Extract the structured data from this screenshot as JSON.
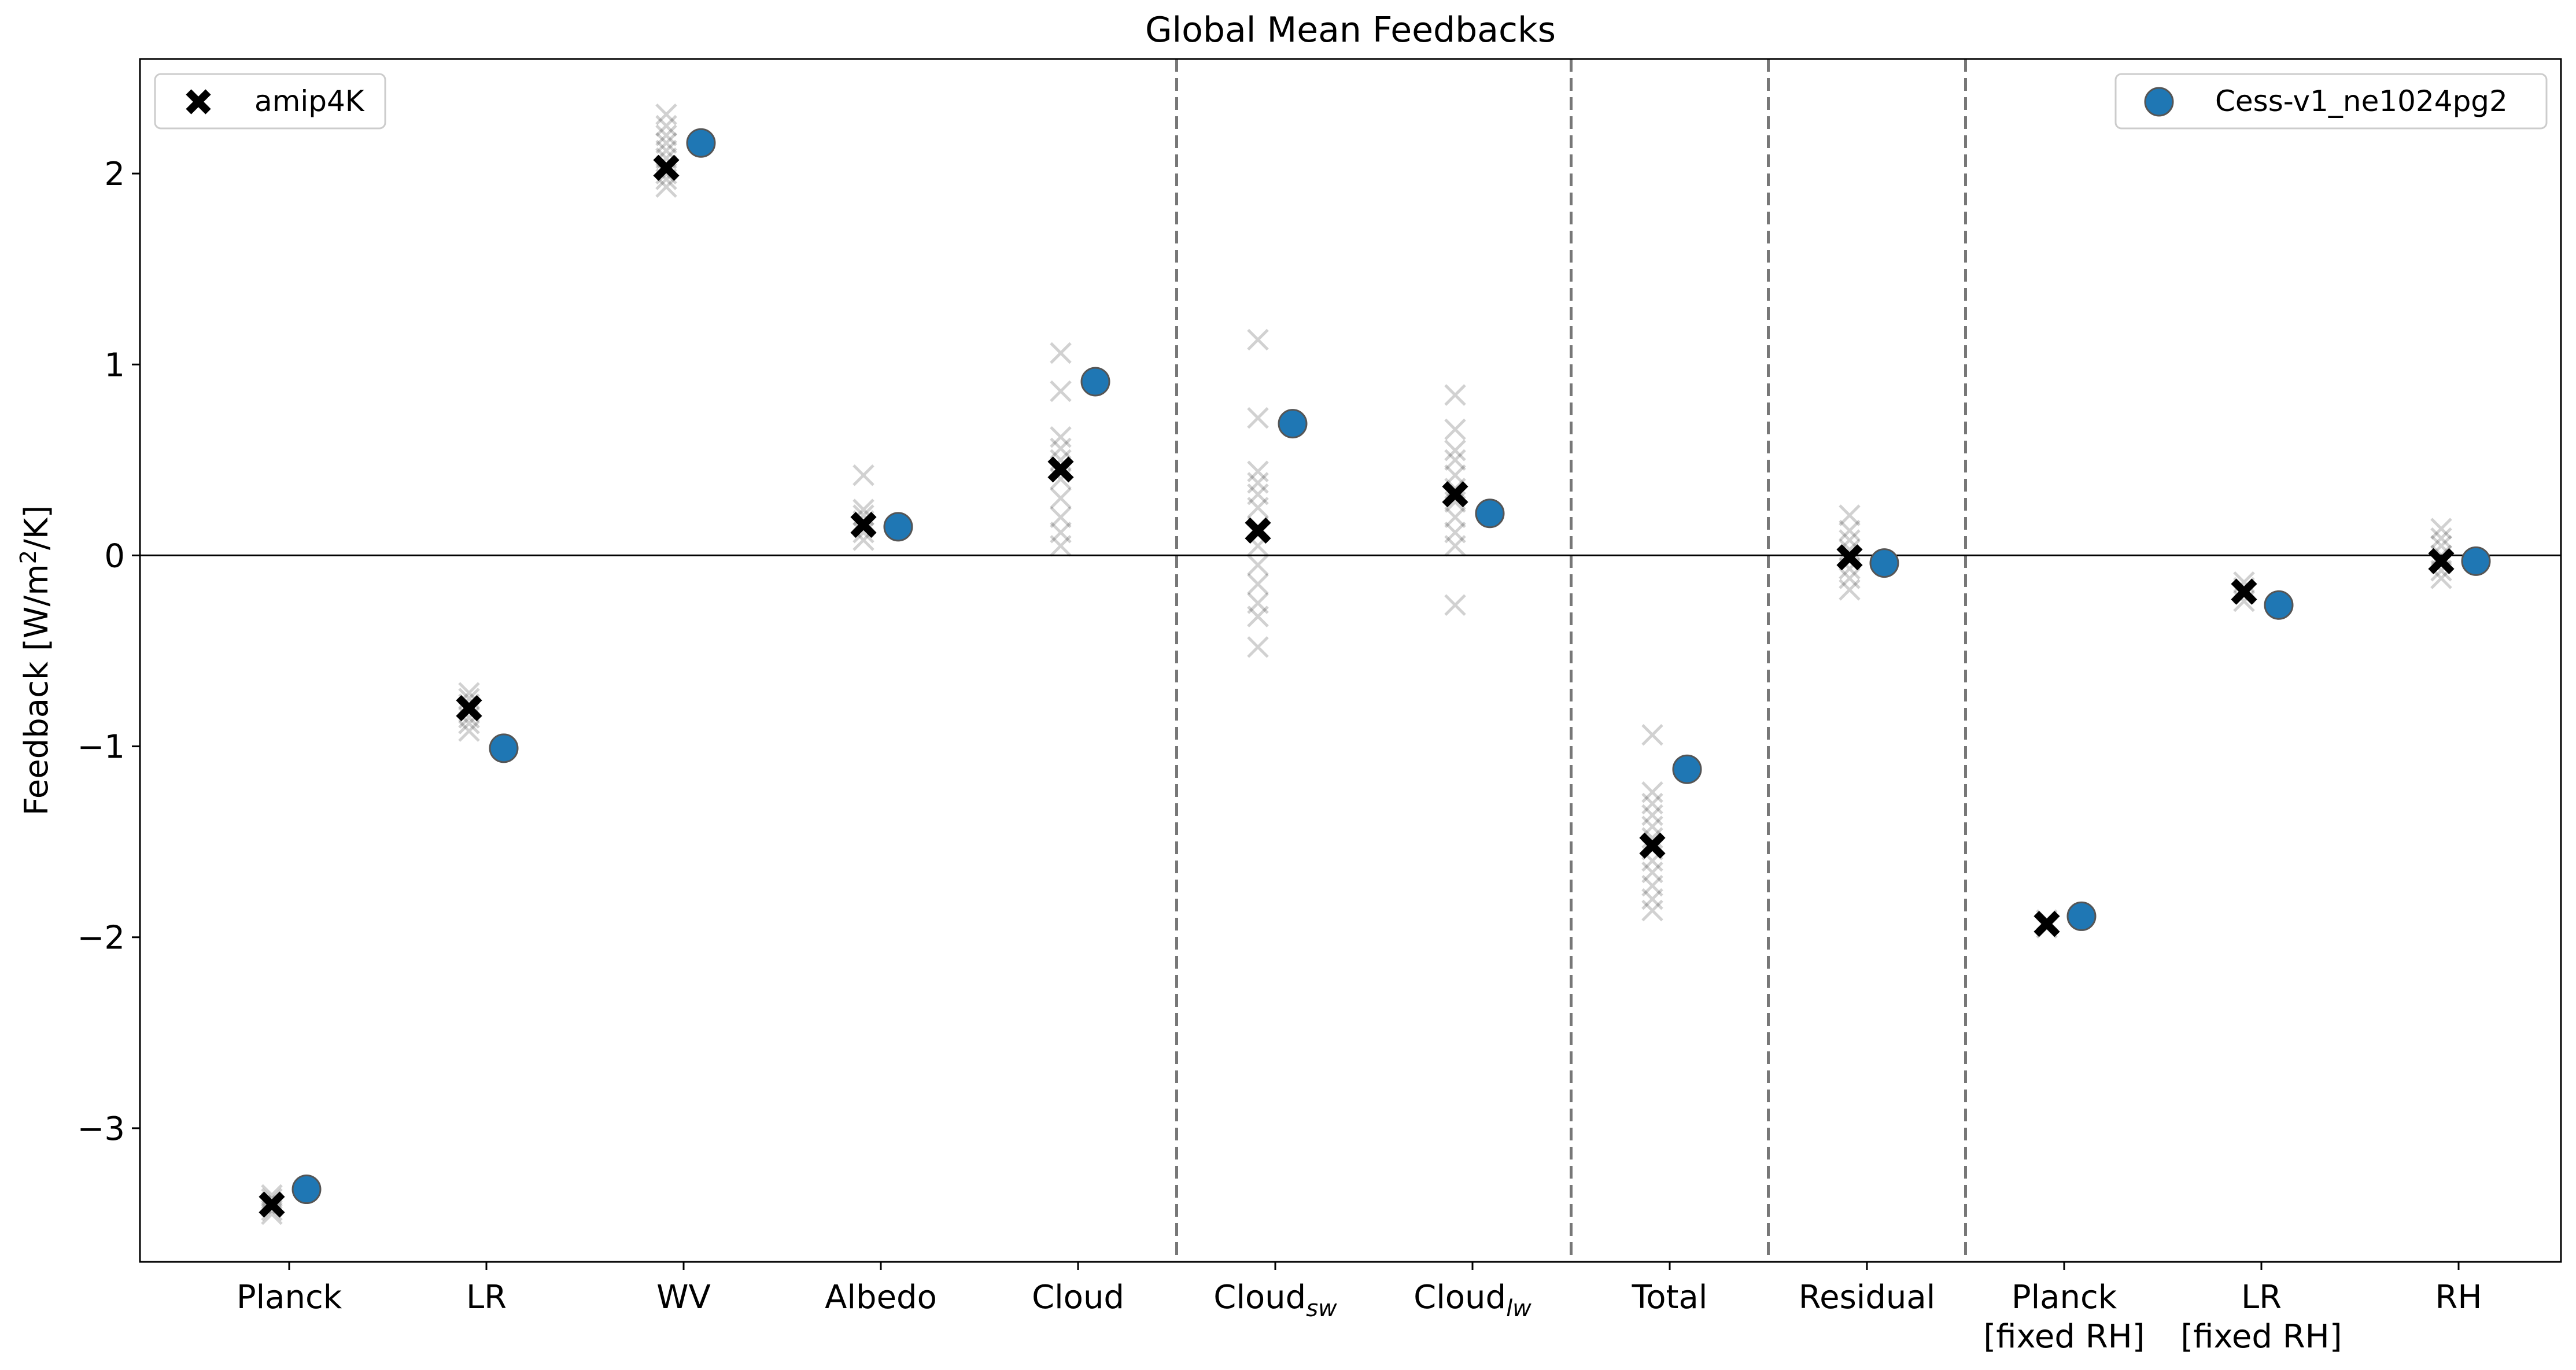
{
  "chart_data": {
    "type": "scatter",
    "title": "Global Mean Feedbacks",
    "ylabel_parts": [
      "Feedback [W/m",
      "2",
      "/K]"
    ],
    "xlabel": "",
    "ylim": [
      -3.7,
      2.6
    ],
    "yticks": [
      -3,
      -2,
      -1,
      0,
      1,
      2
    ],
    "ytick_labels": [
      "−3",
      "−2",
      "−1",
      "0",
      "1",
      "2"
    ],
    "categories": [
      {
        "label": "Planck"
      },
      {
        "label": "LR"
      },
      {
        "label": "WV"
      },
      {
        "label": "Albedo"
      },
      {
        "label": "Cloud"
      },
      {
        "label": "Cloud",
        "sub": "sw"
      },
      {
        "label": "Cloud",
        "sub": "lw"
      },
      {
        "label": "Total"
      },
      {
        "label": "Residual"
      },
      {
        "label": "Planck",
        "line2": "[fixed RH]"
      },
      {
        "label": "LR",
        "line2": "[fixed RH]"
      },
      {
        "label": "RH"
      }
    ],
    "separators_after_index": [
      4,
      6,
      7,
      8
    ],
    "zero_line": true,
    "grid": false,
    "series": [
      {
        "name": "amip4K",
        "marker": "x-bold",
        "color": "#000000",
        "values": [
          -3.4,
          -0.8,
          2.03,
          0.16,
          0.45,
          0.13,
          0.32,
          -1.52,
          -0.01,
          -1.93,
          -0.19,
          -0.03
        ],
        "legend_position": "upper-left"
      },
      {
        "name": "Cess-v1_ne1024pg2",
        "marker": "circle",
        "color": "#1f77b4",
        "values": [
          -3.32,
          -1.01,
          2.16,
          0.15,
          0.91,
          0.69,
          0.22,
          -1.12,
          -0.04,
          -1.89,
          -0.26,
          -0.03
        ],
        "legend_position": "upper-right"
      }
    ],
    "ensemble_members": [
      [
        -3.45,
        -3.43,
        -3.41,
        -3.39,
        -3.37,
        -3.35
      ],
      [
        -0.92,
        -0.88,
        -0.85,
        -0.82,
        -0.78,
        -0.75,
        -0.72
      ],
      [
        1.93,
        1.97,
        2.0,
        2.04,
        2.08,
        2.12,
        2.16,
        2.2,
        2.25,
        2.31
      ],
      [
        0.08,
        0.12,
        0.15,
        0.18,
        0.21,
        0.24,
        0.42
      ],
      [
        0.05,
        0.12,
        0.2,
        0.3,
        0.4,
        0.5,
        0.56,
        0.62,
        0.86,
        1.06
      ],
      [
        -0.48,
        -0.32,
        -0.25,
        -0.15,
        -0.05,
        0.05,
        0.15,
        0.25,
        0.32,
        0.38,
        0.44,
        0.72,
        1.13
      ],
      [
        -0.26,
        0.05,
        0.12,
        0.2,
        0.28,
        0.35,
        0.42,
        0.5,
        0.55,
        0.66,
        0.84
      ],
      [
        -1.86,
        -1.8,
        -1.73,
        -1.66,
        -1.6,
        -1.54,
        -1.48,
        -1.42,
        -1.36,
        -1.3,
        -1.24,
        -0.94
      ],
      [
        -0.18,
        -0.12,
        -0.07,
        -0.02,
        0.03,
        0.08,
        0.13,
        0.21
      ],
      [
        -1.95,
        -1.93,
        -1.91
      ],
      [
        -0.24,
        -0.2,
        -0.17,
        -0.14
      ],
      [
        -0.12,
        -0.08,
        -0.04,
        0.0,
        0.05,
        0.09,
        0.14
      ]
    ]
  }
}
